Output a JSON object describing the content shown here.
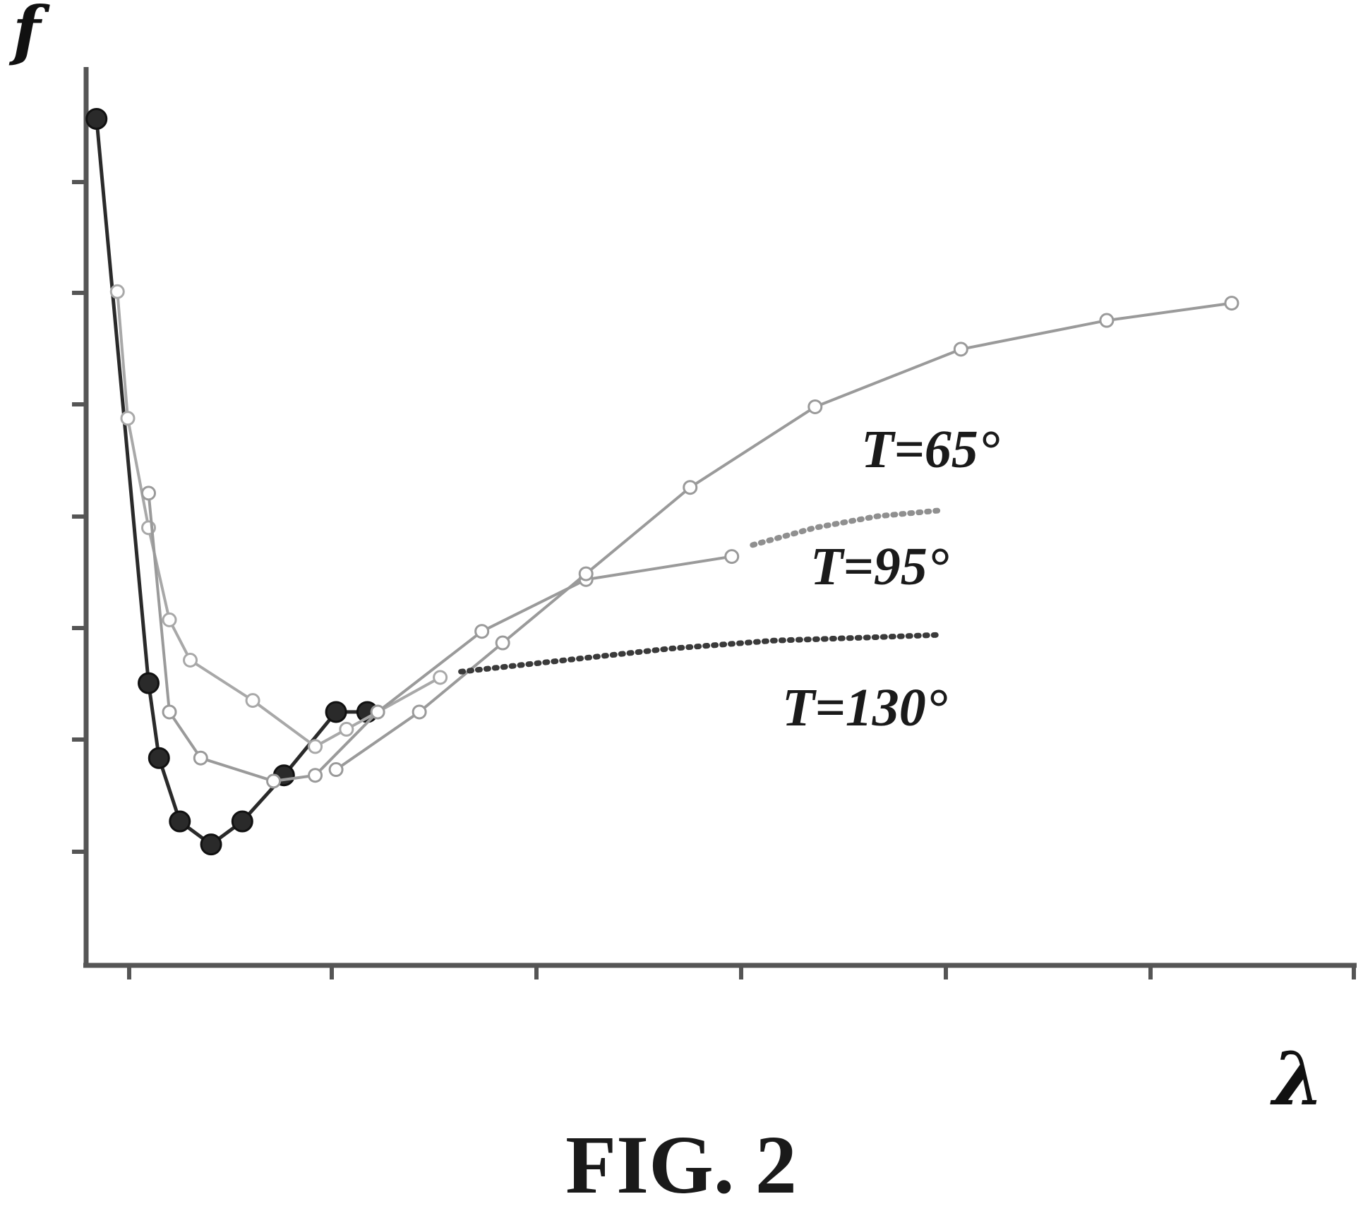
{
  "figure": {
    "caption": "FIG. 2"
  },
  "chart_data": {
    "type": "line",
    "title": "",
    "xlabel": "λ",
    "ylabel": "f",
    "xlim": [
      0,
      6.1
    ],
    "ylim": [
      0,
      7.8
    ],
    "x_ticks_count": 7,
    "y_ticks_count": 9,
    "grid": false,
    "legend": "none",
    "series": [
      {
        "name": "",
        "style": "solid-dark-filled-markers",
        "color": "#2a2a2a",
        "points": [
          [
            0.05,
            7.35
          ],
          [
            0.3,
            2.45
          ],
          [
            0.35,
            1.8
          ],
          [
            0.45,
            1.25
          ],
          [
            0.6,
            1.05
          ],
          [
            0.75,
            1.25
          ],
          [
            0.95,
            1.65
          ],
          [
            1.2,
            2.2
          ],
          [
            1.35,
            2.2
          ]
        ]
      },
      {
        "name": "",
        "style": "light-gray-open-markers",
        "color": "#a8a8a8",
        "points": [
          [
            0.15,
            5.85
          ],
          [
            0.2,
            4.75
          ],
          [
            0.3,
            3.8
          ],
          [
            0.4,
            3.0
          ],
          [
            0.5,
            2.65
          ],
          [
            0.8,
            2.3
          ],
          [
            1.1,
            1.9
          ],
          [
            1.25,
            2.05
          ],
          [
            1.7,
            2.5
          ]
        ]
      },
      {
        "name": "",
        "style": "gray-open-markers",
        "color": "#9a9a9a",
        "points": [
          [
            0.3,
            4.1
          ],
          [
            0.4,
            2.2
          ],
          [
            0.55,
            1.8
          ],
          [
            0.9,
            1.6
          ],
          [
            1.1,
            1.65
          ],
          [
            1.4,
            2.2
          ],
          [
            1.9,
            2.9
          ],
          [
            2.4,
            3.35
          ],
          [
            3.1,
            3.55
          ]
        ]
      },
      {
        "name": "T=65°",
        "style": "gray-open-markers",
        "color": "#9a9a9a",
        "points": [
          [
            1.2,
            1.7
          ],
          [
            1.6,
            2.2
          ],
          [
            2.0,
            2.8
          ],
          [
            2.4,
            3.4
          ],
          [
            2.9,
            4.15
          ],
          [
            3.5,
            4.85
          ],
          [
            4.2,
            5.35
          ],
          [
            4.9,
            5.6
          ],
          [
            5.5,
            5.75
          ]
        ]
      },
      {
        "name": "T=95°",
        "style": "gray-dotted",
        "color": "#8f8f8f",
        "points": [
          [
            3.2,
            3.65
          ],
          [
            3.5,
            3.8
          ],
          [
            3.8,
            3.9
          ],
          [
            4.1,
            3.95
          ]
        ]
      },
      {
        "name": "T=130°",
        "style": "dark-dotted",
        "color": "#3a3a3a",
        "points": [
          [
            1.8,
            2.55
          ],
          [
            2.3,
            2.65
          ],
          [
            2.8,
            2.75
          ],
          [
            3.3,
            2.82
          ],
          [
            3.8,
            2.85
          ],
          [
            4.1,
            2.87
          ]
        ]
      }
    ]
  }
}
